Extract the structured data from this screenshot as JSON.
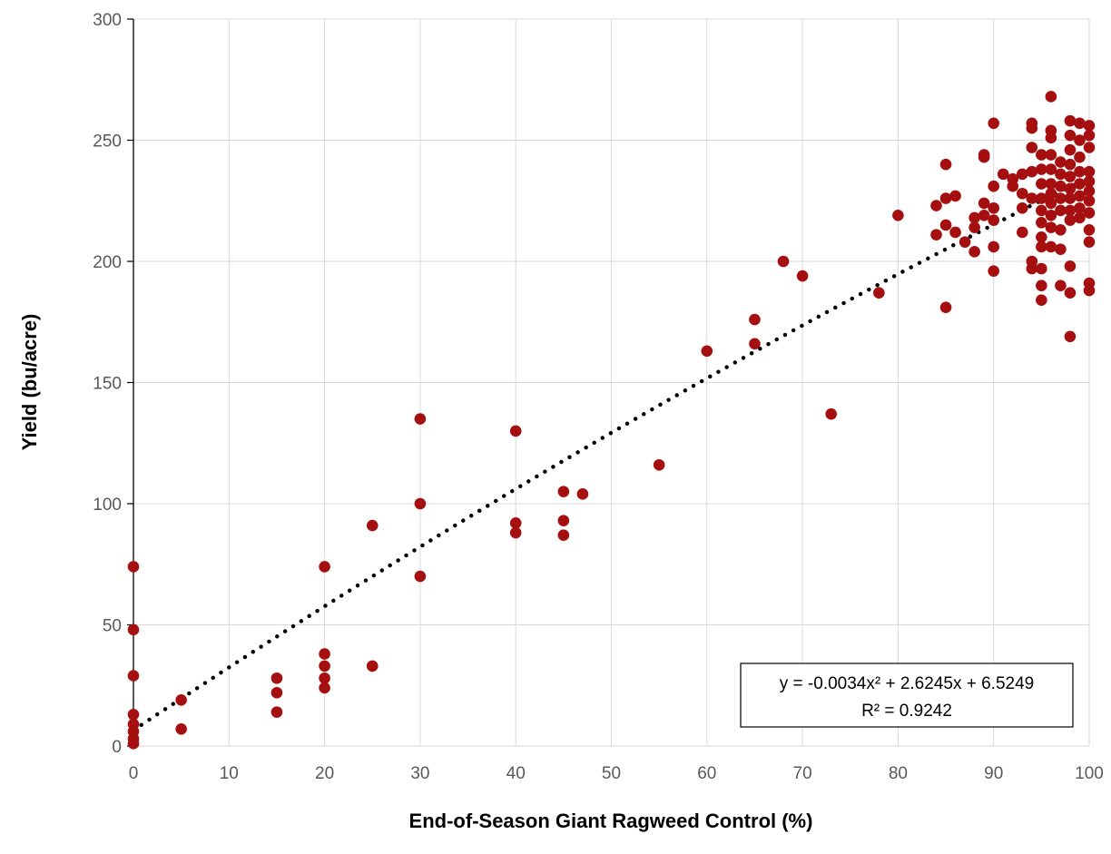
{
  "chart_data": {
    "type": "scatter",
    "title": "",
    "xlabel": "End-of-Season Giant Ragweed Control (%)",
    "ylabel": "Yield (bu/acre)",
    "xlim": [
      0,
      100
    ],
    "ylim": [
      0,
      300
    ],
    "x_ticks": [
      0,
      10,
      20,
      30,
      40,
      50,
      60,
      70,
      80,
      90,
      100
    ],
    "y_ticks": [
      0,
      50,
      100,
      150,
      200,
      250,
      300
    ],
    "grid": "vertical and horizontal major gridlines",
    "legend": "none",
    "marker_color": "#A50F0F",
    "trendline": {
      "type": "polynomial",
      "order": 2,
      "coefficients": {
        "a": -0.0034,
        "b": 2.6245,
        "c": 6.5249
      },
      "x_range": [
        0,
        99
      ],
      "style": "dotted",
      "color": "#000000",
      "equation_label": "y = -0.0034x² + 2.6245x + 6.5249",
      "r2_label": "R² = 0.9242",
      "label_placement": "bottom-right"
    },
    "series": [
      {
        "points": [
          [
            0,
            74
          ],
          [
            0,
            48
          ],
          [
            0,
            29
          ],
          [
            0,
            13
          ],
          [
            0,
            9
          ],
          [
            0,
            6
          ],
          [
            0,
            3
          ],
          [
            0,
            1
          ],
          [
            5,
            19
          ],
          [
            5,
            7
          ],
          [
            15,
            28
          ],
          [
            15,
            22
          ],
          [
            15,
            14
          ],
          [
            20,
            74
          ],
          [
            20,
            38
          ],
          [
            20,
            33
          ],
          [
            20,
            28
          ],
          [
            20,
            24
          ],
          [
            25,
            91
          ],
          [
            25,
            33
          ],
          [
            30,
            135
          ],
          [
            30,
            100
          ],
          [
            30,
            70
          ],
          [
            40,
            130
          ],
          [
            40,
            92
          ],
          [
            40,
            88
          ],
          [
            45,
            105
          ],
          [
            45,
            93
          ],
          [
            45,
            87
          ],
          [
            47,
            104
          ],
          [
            55,
            116
          ],
          [
            60,
            163
          ],
          [
            65,
            176
          ],
          [
            65,
            166
          ],
          [
            68,
            200
          ],
          [
            70,
            194
          ],
          [
            73,
            137
          ],
          [
            78,
            187
          ],
          [
            80,
            219
          ],
          [
            84,
            223
          ],
          [
            84,
            211
          ],
          [
            85,
            240
          ],
          [
            85,
            226
          ],
          [
            85,
            215
          ],
          [
            85,
            181
          ],
          [
            86,
            227
          ],
          [
            86,
            212
          ],
          [
            87,
            208
          ],
          [
            88,
            218
          ],
          [
            88,
            214
          ],
          [
            88,
            204
          ],
          [
            89,
            244
          ],
          [
            89,
            243
          ],
          [
            89,
            224
          ],
          [
            89,
            219
          ],
          [
            90,
            257
          ],
          [
            90,
            231
          ],
          [
            90,
            222
          ],
          [
            90,
            217
          ],
          [
            90,
            206
          ],
          [
            90,
            196
          ],
          [
            91,
            236
          ],
          [
            92,
            234
          ],
          [
            92,
            231
          ],
          [
            93,
            236
          ],
          [
            93,
            228
          ],
          [
            93,
            222
          ],
          [
            93,
            212
          ],
          [
            94,
            257
          ],
          [
            94,
            255
          ],
          [
            94,
            247
          ],
          [
            94,
            237
          ],
          [
            94,
            226
          ],
          [
            94,
            200
          ],
          [
            94,
            197
          ],
          [
            95,
            244
          ],
          [
            95,
            238
          ],
          [
            95,
            232
          ],
          [
            95,
            226
          ],
          [
            95,
            221
          ],
          [
            95,
            216
          ],
          [
            95,
            210
          ],
          [
            95,
            206
          ],
          [
            95,
            197
          ],
          [
            95,
            190
          ],
          [
            95,
            184
          ],
          [
            96,
            268
          ],
          [
            96,
            254
          ],
          [
            96,
            251
          ],
          [
            96,
            244
          ],
          [
            96,
            238
          ],
          [
            96,
            232
          ],
          [
            96,
            228
          ],
          [
            96,
            224
          ],
          [
            96,
            219
          ],
          [
            96,
            214
          ],
          [
            96,
            206
          ],
          [
            97,
            241
          ],
          [
            97,
            236
          ],
          [
            97,
            231
          ],
          [
            97,
            226
          ],
          [
            97,
            221
          ],
          [
            97,
            213
          ],
          [
            97,
            205
          ],
          [
            97,
            190
          ],
          [
            98,
            258
          ],
          [
            98,
            252
          ],
          [
            98,
            246
          ],
          [
            98,
            240
          ],
          [
            98,
            235
          ],
          [
            98,
            230
          ],
          [
            98,
            226
          ],
          [
            98,
            221
          ],
          [
            98,
            217
          ],
          [
            98,
            198
          ],
          [
            98,
            187
          ],
          [
            98,
            169
          ],
          [
            99,
            257
          ],
          [
            99,
            250
          ],
          [
            99,
            243
          ],
          [
            99,
            237
          ],
          [
            99,
            232
          ],
          [
            99,
            227
          ],
          [
            99,
            222
          ],
          [
            99,
            218
          ],
          [
            100,
            256
          ],
          [
            100,
            252
          ],
          [
            100,
            247
          ],
          [
            100,
            237
          ],
          [
            100,
            233
          ],
          [
            100,
            229
          ],
          [
            100,
            225
          ],
          [
            100,
            220
          ],
          [
            100,
            213
          ],
          [
            100,
            208
          ],
          [
            100,
            191
          ],
          [
            100,
            188
          ]
        ]
      }
    ]
  }
}
